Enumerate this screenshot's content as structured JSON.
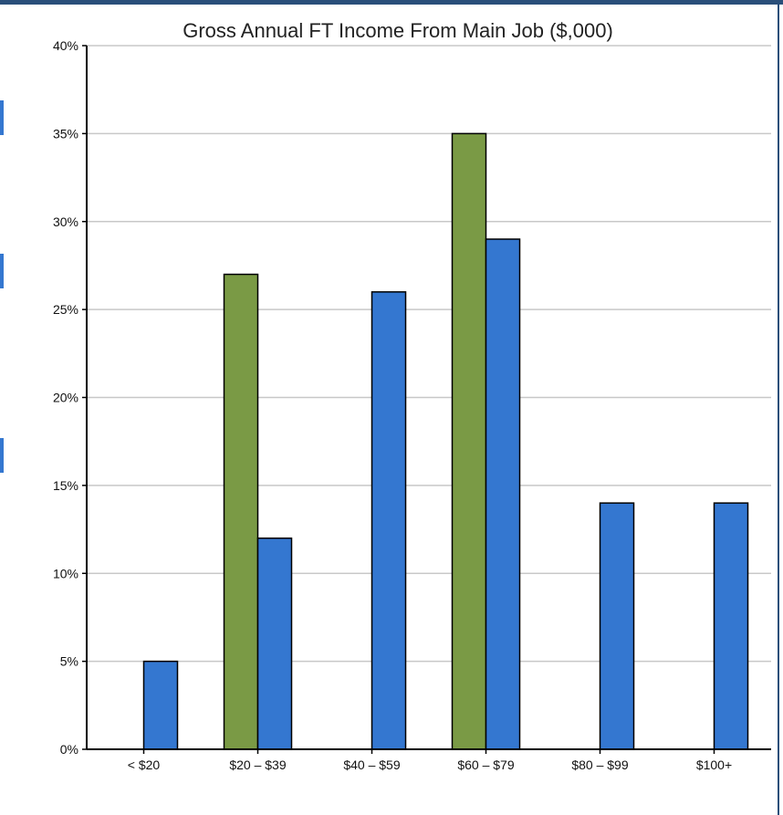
{
  "chart_data": {
    "type": "bar",
    "title": "Gross Annual FT Income From Main Job ($,000)",
    "xlabel": "",
    "ylabel": "",
    "categories": [
      "< $20",
      "$20 – $39",
      "$40 – $59",
      "$60 – $79",
      "$80 – $99",
      "$100+"
    ],
    "series": [
      {
        "values": [
          0,
          27,
          0,
          35,
          0,
          0
        ],
        "color": "#7a9a45"
      },
      {
        "values": [
          5,
          12,
          26,
          29,
          14,
          14
        ],
        "color": "#3477d0"
      }
    ],
    "ylim": [
      0,
      40
    ],
    "yticks": [
      "0%",
      "5%",
      "10%",
      "15%",
      "20%",
      "25%",
      "30%",
      "35%",
      "40%"
    ],
    "grid": true,
    "legend": "none"
  },
  "page": {
    "border_color": "#2a4f7a",
    "left_accent_color": "#3477d0"
  }
}
